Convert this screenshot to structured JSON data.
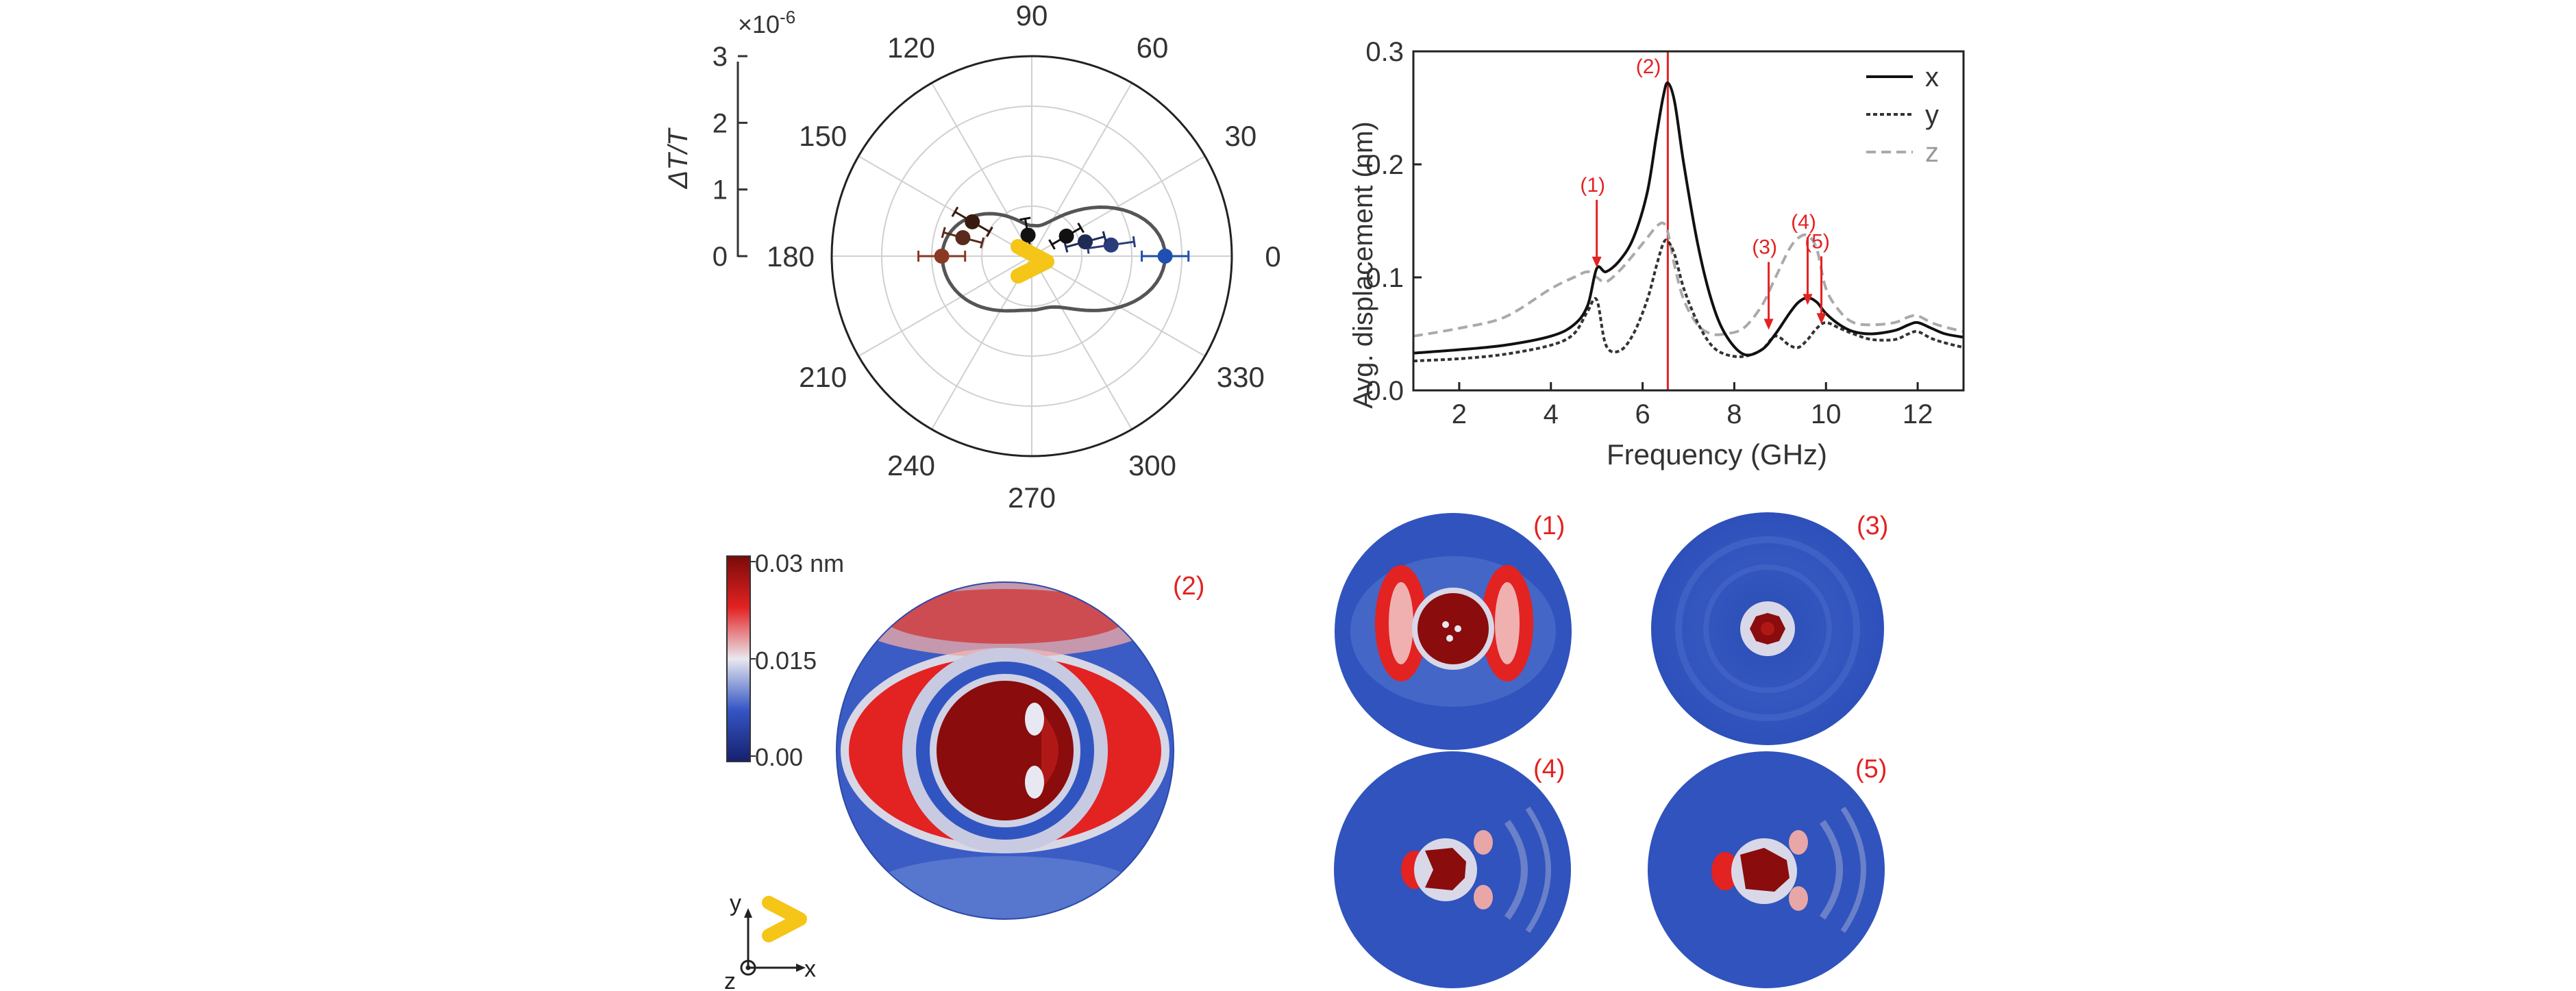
{
  "chart_data": [
    {
      "type": "scatter",
      "coordinate_system": "polar",
      "ylabel": "ΔT/T",
      "multiplier": "×10",
      "multiplier_exponent": "-6",
      "radial_ticks": [
        "0",
        "1",
        "2",
        "3"
      ],
      "radial_range": [
        0,
        3
      ],
      "angle_ticks": [
        "0",
        "30",
        "60",
        "90",
        "120",
        "150",
        "180",
        "210",
        "240",
        "270",
        "300",
        "330"
      ],
      "grid": true,
      "points": [
        {
          "angle": 0,
          "r": 2.0,
          "err": 0.35,
          "color": "#1f4fb0"
        },
        {
          "angle": 8,
          "r": 1.2,
          "err": 0.35,
          "color": "#2a3c7a"
        },
        {
          "angle": 15,
          "r": 0.83,
          "err": 0.3,
          "color": "#1d2b55"
        },
        {
          "angle": 30,
          "r": 0.6,
          "err": 0.25,
          "color": "#111111"
        },
        {
          "angle": 100,
          "r": 0.32,
          "err": 0.25,
          "color": "#111111"
        },
        {
          "angle": 150,
          "r": 1.03,
          "err": 0.3,
          "color": "#3a1a0e"
        },
        {
          "angle": 165,
          "r": 1.07,
          "err": 0.3,
          "color": "#5a2a1a"
        },
        {
          "angle": 180,
          "r": 1.35,
          "err": 0.35,
          "color": "#8a3a22"
        }
      ],
      "fit_line_color": "#555555"
    },
    {
      "type": "line",
      "xlabel": "Frequency (GHz)",
      "ylabel": "Avg. displacement (nm)",
      "xlim": [
        1,
        13
      ],
      "ylim": [
        0,
        0.3
      ],
      "xticks": [
        "2",
        "4",
        "6",
        "8",
        "10",
        "12"
      ],
      "yticks": [
        "0.0",
        "0.1",
        "0.2",
        "0.3"
      ],
      "legend_position": "top-right",
      "vertical_marker": {
        "x": 6.55,
        "label": "(2)",
        "color": "#e32222"
      },
      "annotations": [
        {
          "label": "(1)",
          "x": 5.0,
          "y": 0.105
        },
        {
          "label": "(3)",
          "x": 8.75,
          "y": 0.05
        },
        {
          "label": "(4)",
          "x": 9.6,
          "y": 0.072
        },
        {
          "label": "(5)",
          "x": 9.9,
          "y": 0.055
        }
      ],
      "x": [
        1,
        2,
        3,
        4,
        4.5,
        4.8,
        5.0,
        5.2,
        5.5,
        5.8,
        6.1,
        6.3,
        6.45,
        6.55,
        6.7,
        6.9,
        7.2,
        7.5,
        7.8,
        8.2,
        8.6,
        8.9,
        9.2,
        9.4,
        9.6,
        9.8,
        10.0,
        10.3,
        10.6,
        11.0,
        11.5,
        11.8,
        12.0,
        12.3,
        12.6,
        13.0
      ],
      "series": [
        {
          "name": "x",
          "color": "#111111",
          "dash": "solid",
          "values": [
            0.033,
            0.036,
            0.04,
            0.048,
            0.058,
            0.075,
            0.108,
            0.105,
            0.115,
            0.135,
            0.175,
            0.225,
            0.26,
            0.272,
            0.255,
            0.2,
            0.13,
            0.08,
            0.05,
            0.032,
            0.036,
            0.05,
            0.068,
            0.078,
            0.082,
            0.078,
            0.068,
            0.058,
            0.052,
            0.05,
            0.053,
            0.058,
            0.06,
            0.055,
            0.05,
            0.047
          ]
        },
        {
          "name": "y",
          "color": "#333333",
          "dash": "6,4",
          "values": [
            0.026,
            0.028,
            0.032,
            0.04,
            0.05,
            0.07,
            0.08,
            0.04,
            0.035,
            0.05,
            0.08,
            0.11,
            0.13,
            0.132,
            0.12,
            0.09,
            0.06,
            0.04,
            0.032,
            0.03,
            0.036,
            0.048,
            0.04,
            0.038,
            0.045,
            0.055,
            0.06,
            0.055,
            0.05,
            0.045,
            0.045,
            0.05,
            0.052,
            0.046,
            0.042,
            0.038
          ]
        },
        {
          "name": "z",
          "color": "#aaaaaa",
          "dash": "14,8",
          "values": [
            0.048,
            0.055,
            0.065,
            0.09,
            0.1,
            0.105,
            0.1,
            0.096,
            0.106,
            0.12,
            0.135,
            0.145,
            0.148,
            0.14,
            0.11,
            0.08,
            0.058,
            0.05,
            0.05,
            0.055,
            0.075,
            0.1,
            0.125,
            0.135,
            0.137,
            0.125,
            0.09,
            0.07,
            0.06,
            0.058,
            0.06,
            0.065,
            0.066,
            0.06,
            0.056,
            0.052
          ]
        }
      ]
    },
    {
      "type": "heatmap",
      "colorbar": {
        "max_label": "0.03 nm",
        "mid_label": "0.015",
        "min_label": "0.00"
      },
      "maps": [
        {
          "label": "(2)"
        },
        {
          "label": "(1)"
        },
        {
          "label": "(3)"
        },
        {
          "label": "(4)"
        },
        {
          "label": "(5)"
        }
      ],
      "axes": {
        "x": "x",
        "y": "y",
        "z": "z"
      }
    }
  ],
  "colors": {
    "accent_red": "#e32222",
    "shape_yellow": "#f5c518",
    "map_blue": "#2b4fb8",
    "map_red": "#8a0c0c"
  }
}
